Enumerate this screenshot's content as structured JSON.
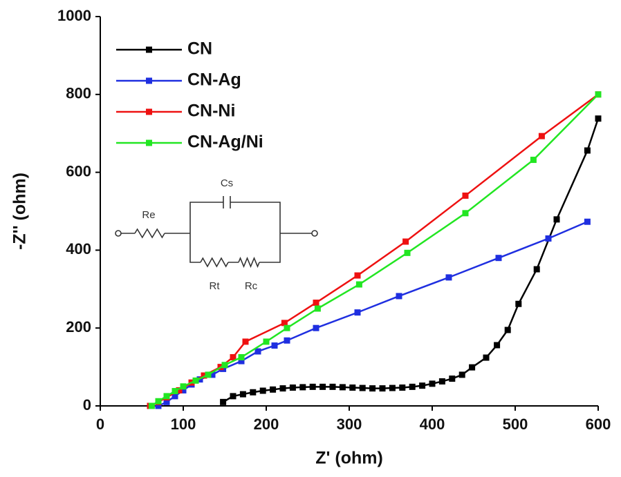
{
  "chart_data": {
    "type": "line",
    "x_label": "Z' (ohm)",
    "y_label": "-Z'' (ohm)",
    "xlim": [
      0,
      600
    ],
    "ylim": [
      0,
      1000
    ],
    "xticks": [
      0,
      100,
      200,
      300,
      400,
      500,
      600
    ],
    "yticks": [
      0,
      200,
      400,
      600,
      800,
      1000
    ],
    "legend": "upper left",
    "annotations": [
      "Re",
      "Cs",
      "Rt",
      "Rc"
    ],
    "series": [
      {
        "name": "CN",
        "color": "#000000",
        "x": [
          148,
          160,
          172,
          184,
          196,
          208,
          220,
          232,
          244,
          256,
          268,
          280,
          292,
          304,
          316,
          328,
          340,
          352,
          364,
          376,
          388,
          400,
          412,
          424,
          436,
          448,
          465,
          478,
          491,
          504,
          526,
          550,
          587,
          600
        ],
        "values": [
          10,
          25,
          30,
          35,
          39,
          42,
          45,
          47,
          48,
          49,
          49,
          49,
          48,
          47,
          46,
          45,
          45,
          46,
          47,
          49,
          52,
          57,
          63,
          70,
          80,
          99,
          124,
          156,
          195,
          262,
          351,
          479,
          656,
          738
        ]
      },
      {
        "name": "CN-Ag",
        "color": "#1f2fe0",
        "x": [
          70,
          80,
          90,
          100,
          110,
          120,
          135,
          148,
          170,
          190,
          210,
          225,
          260,
          310,
          360,
          420,
          480,
          540,
          587
        ],
        "values": [
          0,
          10,
          25,
          40,
          55,
          68,
          80,
          95,
          115,
          140,
          155,
          168,
          200,
          240,
          282,
          330,
          380,
          430,
          473
        ]
      },
      {
        "name": "CN-Ni",
        "color": "#ee1111",
        "x": [
          60,
          70,
          80,
          95,
          110,
          125,
          145,
          160,
          175,
          222,
          260,
          310,
          368,
          440,
          532,
          600
        ],
        "values": [
          0,
          10,
          22,
          40,
          60,
          78,
          100,
          125,
          165,
          213,
          265,
          335,
          422,
          540,
          693,
          800
        ]
      },
      {
        "name": "CN-Ag/Ni",
        "color": "#22e622",
        "x": [
          62,
          70,
          80,
          90,
          100,
          115,
          130,
          150,
          170,
          200,
          225,
          262,
          312,
          370,
          440,
          522,
          600
        ],
        "values": [
          0,
          12,
          25,
          38,
          50,
          65,
          80,
          105,
          125,
          165,
          200,
          250,
          312,
          393,
          495,
          632,
          800
        ]
      }
    ]
  }
}
